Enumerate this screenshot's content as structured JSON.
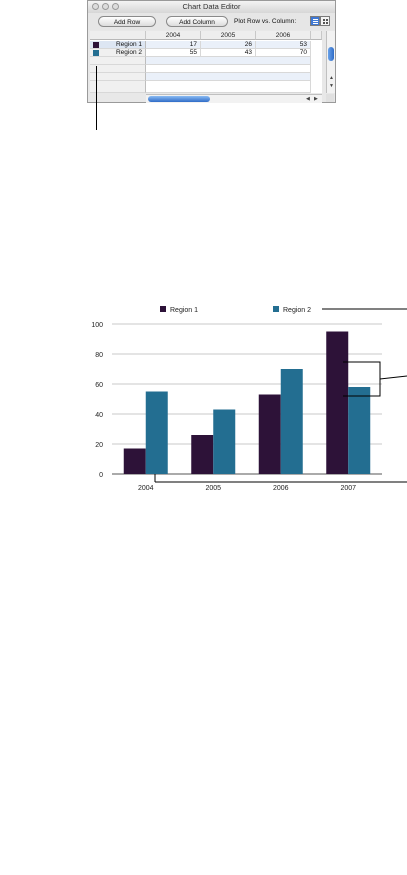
{
  "window": {
    "title": "Chart Data Editor",
    "add_row_label": "Add Row",
    "add_column_label": "Add Column",
    "plot_label": "Plot Row vs. Column:"
  },
  "table": {
    "columns": [
      "2004",
      "2005",
      "2006"
    ],
    "rows": [
      {
        "label": "Region 1",
        "color": "#2d1238",
        "values": [
          "17",
          "26",
          "53"
        ]
      },
      {
        "label": "Region 2",
        "color": "#236e91",
        "values": [
          "55",
          "43",
          "70"
        ]
      }
    ]
  },
  "chart_data": {
    "type": "bar",
    "categories": [
      "2004",
      "2005",
      "2006",
      "2007"
    ],
    "series": [
      {
        "name": "Region 1",
        "color": "#2d1238",
        "values": [
          17,
          26,
          53,
          95
        ]
      },
      {
        "name": "Region 2",
        "color": "#236e91",
        "values": [
          55,
          43,
          70,
          58
        ]
      }
    ],
    "ylim": [
      0,
      100
    ],
    "yticks": [
      "0",
      "20",
      "40",
      "60",
      "80",
      "100"
    ],
    "grid": true,
    "legend_position": "top"
  }
}
